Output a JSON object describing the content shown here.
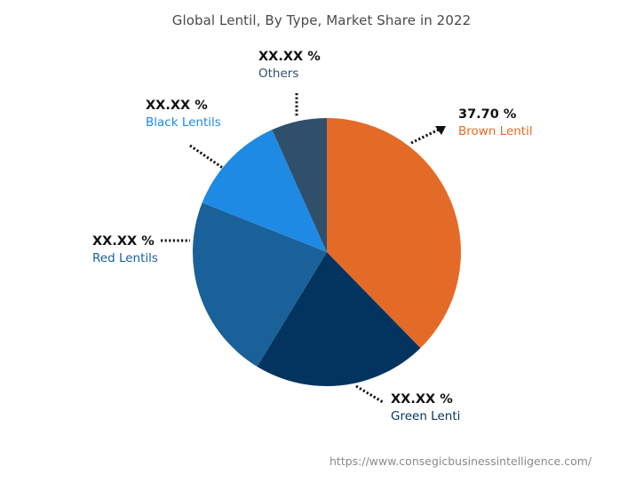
{
  "title": "Global Lentil, By Type, Market Share in 2022",
  "footer_url": "https://www.consegicbusinessintelligence.com/",
  "labels": {
    "brown": {
      "value": "37.70 %",
      "name": "Brown Lentil",
      "color": "#E46A27"
    },
    "green": {
      "value": "XX.XX %",
      "name": "Green Lenti",
      "color": "#03345F"
    },
    "red": {
      "value": "XX.XX %",
      "name": "Red Lentils",
      "color": "#1A6099"
    },
    "black": {
      "value": "XX.XX %",
      "name": "Black Lentils",
      "color": "#1E8AE3"
    },
    "others": {
      "value": "XX.XX %",
      "name": "Others",
      "color": "#2F4F6B"
    }
  },
  "chart_data": {
    "type": "pie",
    "title": "Global Lentil, By Type, Market Share in 2022",
    "categories": [
      "Brown Lentil",
      "Green Lenti",
      "Red Lentils",
      "Black Lentils",
      "Others"
    ],
    "values": [
      37.7,
      21.0,
      22.3,
      12.3,
      6.7
    ],
    "value_labels": [
      "37.70 %",
      "XX.XX %",
      "XX.XX %",
      "XX.XX %",
      "XX.XX %"
    ],
    "colors": [
      "#E46A27",
      "#03345F",
      "#1A6099",
      "#1E8AE3",
      "#2F4F6B"
    ],
    "start_angle_deg": 0,
    "direction": "clockwise",
    "center": [
      368,
      284
    ],
    "radius": 151,
    "legend": "none (leader-line labels)",
    "annotation": "https://www.consegicbusinessintelligence.com/"
  }
}
